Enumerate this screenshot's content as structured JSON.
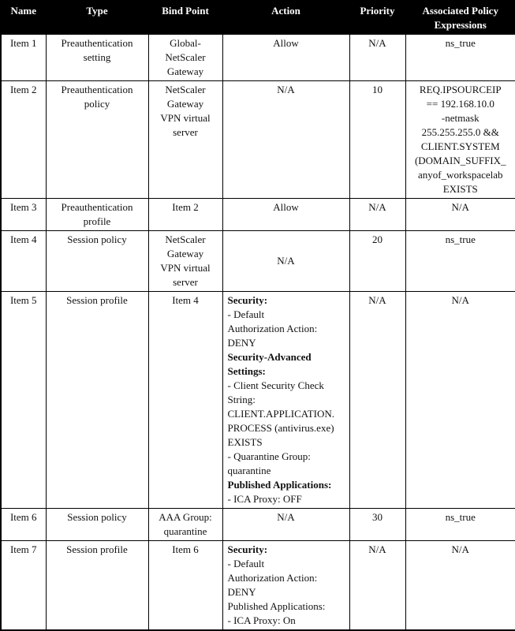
{
  "table": {
    "columns": [
      {
        "label": "Name"
      },
      {
        "label": "Type"
      },
      {
        "label": "Bind Point"
      },
      {
        "label": "Action"
      },
      {
        "label": "Priority"
      },
      {
        "label": "Associated Policy\nExpressions"
      }
    ],
    "rows": [
      {
        "cells": [
          {
            "text": "Item 1"
          },
          {
            "text": "Preauthentication\nsetting"
          },
          {
            "text": "Global-\nNetScaler\nGateway"
          },
          {
            "text": "Allow"
          },
          {
            "text": "N/A"
          },
          {
            "text": "ns_true"
          }
        ]
      },
      {
        "cells": [
          {
            "text": "Item 2"
          },
          {
            "text": "Preauthentication\npolicy"
          },
          {
            "text": "NetScaler\nGateway\nVPN virtual\nserver"
          },
          {
            "text": "N/A"
          },
          {
            "text": "10"
          },
          {
            "text": "REQ.IPSOURCEIP\n== 192.168.10.0\n-netmask\n255.255.255.0 &&\nCLIENT.SYSTEM\n(DOMAIN_SUFFIX_\nanyof_workspacelab\nEXISTS"
          }
        ]
      },
      {
        "cells": [
          {
            "text": "Item 3"
          },
          {
            "text": "Preauthentication\nprofile"
          },
          {
            "text": "Item 2"
          },
          {
            "text": "Allow"
          },
          {
            "text": "N/A"
          },
          {
            "text": "N/A"
          }
        ]
      },
      {
        "cells": [
          {
            "text": "Item 4"
          },
          {
            "text": "Session policy"
          },
          {
            "text": "NetScaler\nGateway\nVPN virtual\nserver"
          },
          {
            "text": "N/A",
            "valign": "middle"
          },
          {
            "text": "20"
          },
          {
            "text": "ns_true"
          }
        ]
      },
      {
        "cells": [
          {
            "text": "Item 5"
          },
          {
            "text": "Session profile"
          },
          {
            "text": "Item 4"
          },
          {
            "align": "left",
            "rich": [
              {
                "text": "Security:",
                "bold": true
              },
              {
                "text": "- Default"
              },
              {
                "text": "Authorization Action:"
              },
              {
                "text": "DENY"
              },
              {
                "text": "Security-Advanced",
                "bold": true
              },
              {
                "text": "Settings:",
                "bold": true
              },
              {
                "text": "- Client Security Check"
              },
              {
                "text": "String:"
              },
              {
                "text": "CLIENT.APPLICATION."
              },
              {
                "text": "PROCESS (antivirus.exe)"
              },
              {
                "text": "EXISTS"
              },
              {
                "text": "- Quarantine Group:"
              },
              {
                "text": "quarantine"
              },
              {
                "text": "Published Applications:",
                "bold": true
              },
              {
                "text": "- ICA Proxy: OFF"
              }
            ]
          },
          {
            "text": "N/A"
          },
          {
            "text": "N/A"
          }
        ]
      },
      {
        "cells": [
          {
            "text": "Item 6"
          },
          {
            "text": "Session policy"
          },
          {
            "text": "AAA Group:\nquarantine"
          },
          {
            "text": "N/A"
          },
          {
            "text": "30"
          },
          {
            "text": "ns_true"
          }
        ]
      },
      {
        "cells": [
          {
            "text": "Item 7"
          },
          {
            "text": "Session profile"
          },
          {
            "text": "Item 6"
          },
          {
            "align": "left",
            "rich": [
              {
                "text": "Security:",
                "bold": true
              },
              {
                "text": "- Default"
              },
              {
                "text": "Authorization Action:"
              },
              {
                "text": "DENY"
              },
              {
                "text": "Published Applications:"
              },
              {
                "text": "- ICA Proxy: On"
              }
            ]
          },
          {
            "text": "N/A"
          },
          {
            "text": "N/A"
          }
        ]
      }
    ]
  }
}
